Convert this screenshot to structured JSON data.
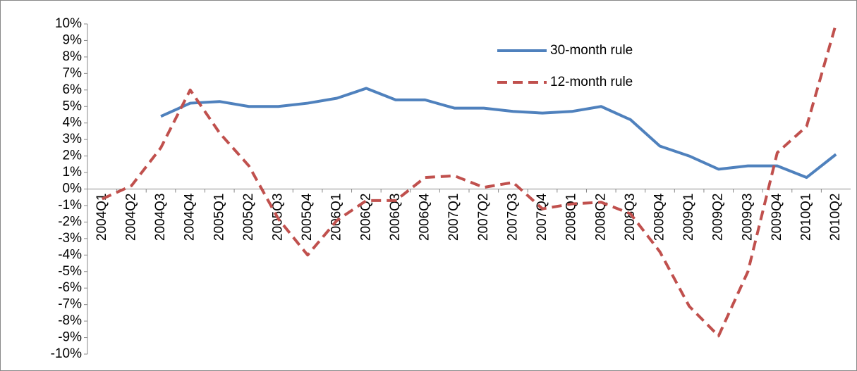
{
  "chart_data": {
    "type": "line",
    "categories": [
      "2004Q1",
      "2004Q2",
      "2004Q3",
      "2004Q4",
      "2005Q1",
      "2005Q2",
      "2005Q3",
      "2005Q4",
      "2006Q1",
      "2006Q2",
      "2006Q3",
      "2006Q4",
      "2007Q1",
      "2007Q2",
      "2007Q3",
      "2007Q4",
      "2008Q1",
      "2008Q2",
      "2008Q3",
      "2008Q4",
      "2009Q1",
      "2009Q2",
      "2009Q3",
      "2009Q4",
      "2010Q1",
      "2010Q2"
    ],
    "series": [
      {
        "name": "30-month rule",
        "color": "#4f81bd",
        "dashed": false,
        "values": [
          null,
          null,
          4.4,
          5.2,
          5.3,
          5.0,
          5.0,
          5.2,
          5.5,
          6.1,
          5.4,
          5.4,
          4.9,
          4.9,
          4.7,
          4.6,
          4.7,
          5.0,
          4.2,
          2.6,
          2.0,
          1.2,
          1.4,
          1.4,
          0.7,
          2.1
        ]
      },
      {
        "name": "12-month rule",
        "color": "#c0504d",
        "dashed": true,
        "values": [
          -0.6,
          0.2,
          2.5,
          6.0,
          3.4,
          1.4,
          -1.8,
          -4.0,
          -1.9,
          -0.7,
          -0.7,
          0.7,
          0.8,
          0.1,
          0.4,
          -1.2,
          -0.9,
          -0.8,
          -1.5,
          -3.8,
          -7.1,
          -8.9,
          -5.0,
          2.2,
          3.8,
          10.0
        ]
      }
    ],
    "ylim": [
      -10,
      10
    ],
    "yticks": [
      {
        "value": -10,
        "label": "-10%"
      },
      {
        "value": -9,
        "label": "-9%"
      },
      {
        "value": -8,
        "label": "-8%"
      },
      {
        "value": -7,
        "label": "-7%"
      },
      {
        "value": -6,
        "label": "-6%"
      },
      {
        "value": -5,
        "label": "-5%"
      },
      {
        "value": -4,
        "label": "-4%"
      },
      {
        "value": -3,
        "label": "-3%"
      },
      {
        "value": -2,
        "label": "-2%"
      },
      {
        "value": -1,
        "label": "-1%"
      },
      {
        "value": 0,
        "label": "0%"
      },
      {
        "value": 1,
        "label": "1%"
      },
      {
        "value": 2,
        "label": "2%"
      },
      {
        "value": 3,
        "label": "3%"
      },
      {
        "value": 4,
        "label": "4%"
      },
      {
        "value": 5,
        "label": "5%"
      },
      {
        "value": 6,
        "label": "6%"
      },
      {
        "value": 7,
        "label": "7%"
      },
      {
        "value": 8,
        "label": "8%"
      },
      {
        "value": 9,
        "label": "9%"
      },
      {
        "value": 10,
        "label": "10%"
      }
    ],
    "grid": false,
    "legend": "top-right"
  }
}
